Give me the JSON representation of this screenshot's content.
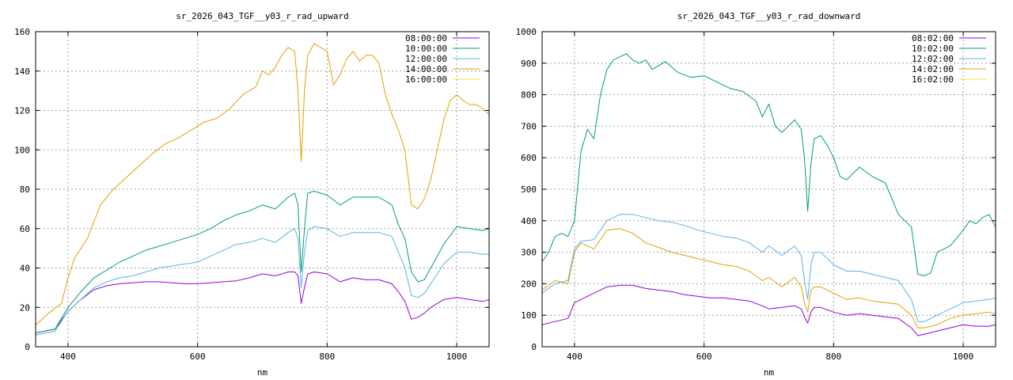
{
  "chart_data": [
    {
      "type": "line",
      "title": "sr_2026_043_TGF__y03_r_rad_upward",
      "xlabel": "nm",
      "ylabel": "",
      "xlim": [
        350,
        1050
      ],
      "ylim": [
        0,
        160
      ],
      "xticks": [
        400,
        600,
        800,
        1000
      ],
      "yticks": [
        0,
        20,
        40,
        60,
        80,
        100,
        120,
        140,
        160
      ],
      "grid": true,
      "legend": "top-right",
      "series": [
        {
          "name": "08:00:00",
          "color": "#9400d3",
          "x": [
            350,
            380,
            400,
            420,
            440,
            460,
            480,
            500,
            520,
            540,
            560,
            580,
            600,
            620,
            640,
            660,
            680,
            700,
            720,
            740,
            750,
            755,
            760,
            765,
            770,
            780,
            800,
            820,
            840,
            860,
            880,
            900,
            910,
            920,
            930,
            940,
            950,
            960,
            980,
            1000,
            1020,
            1040,
            1050
          ],
          "y": [
            7,
            9,
            18,
            24,
            29,
            31,
            32,
            32.5,
            33,
            33,
            32.5,
            32,
            32,
            32.5,
            33,
            33.5,
            35,
            37,
            36,
            38,
            38,
            36,
            22,
            30,
            37,
            38,
            37,
            33,
            35,
            34,
            34,
            32,
            28,
            23,
            14,
            15,
            17,
            20,
            24,
            25,
            24,
            23,
            24
          ]
        },
        {
          "name": "10:00:00",
          "color": "#009e73",
          "x": [
            350,
            380,
            400,
            420,
            440,
            460,
            480,
            500,
            520,
            540,
            560,
            580,
            600,
            620,
            640,
            660,
            680,
            700,
            720,
            740,
            750,
            755,
            760,
            765,
            770,
            780,
            800,
            820,
            840,
            860,
            880,
            900,
            910,
            920,
            930,
            940,
            950,
            960,
            980,
            1000,
            1020,
            1040,
            1050
          ],
          "y": [
            7,
            9,
            20,
            28,
            35,
            39,
            43,
            46,
            49,
            51,
            53,
            55,
            57,
            60,
            64,
            67,
            69,
            72,
            70,
            76,
            78,
            72,
            38,
            60,
            78,
            79,
            77,
            72,
            76,
            76,
            76,
            72,
            62,
            55,
            38,
            33,
            34,
            40,
            52,
            61,
            60,
            59,
            60
          ]
        },
        {
          "name": "12:00:00",
          "color": "#56b4e9",
          "x": [
            350,
            380,
            400,
            420,
            440,
            460,
            480,
            500,
            520,
            540,
            560,
            580,
            600,
            620,
            640,
            660,
            680,
            700,
            720,
            740,
            750,
            755,
            760,
            765,
            770,
            780,
            800,
            820,
            840,
            860,
            880,
            900,
            910,
            920,
            930,
            940,
            950,
            960,
            980,
            1000,
            1020,
            1040,
            1050
          ],
          "y": [
            6,
            8,
            18,
            24,
            30,
            33,
            35,
            36,
            38,
            40,
            41,
            42,
            43,
            46,
            49,
            52,
            53,
            55,
            53,
            58,
            60,
            55,
            30,
            48,
            59,
            61,
            60,
            56,
            58,
            58,
            58,
            56,
            48,
            40,
            26,
            25,
            27,
            32,
            42,
            48,
            48,
            47,
            47
          ]
        },
        {
          "name": "14:00:00",
          "color": "#e69f00",
          "x": [
            350,
            370,
            390,
            400,
            410,
            430,
            450,
            470,
            490,
            510,
            530,
            550,
            570,
            590,
            610,
            630,
            650,
            670,
            690,
            700,
            710,
            720,
            730,
            740,
            750,
            755,
            760,
            765,
            770,
            780,
            790,
            800,
            810,
            820,
            830,
            840,
            850,
            860,
            870,
            880,
            890,
            900,
            910,
            920,
            930,
            940,
            950,
            960,
            970,
            980,
            990,
            1000,
            1010,
            1020,
            1030,
            1040,
            1050
          ],
          "y": [
            11,
            17,
            22,
            35,
            45,
            55,
            72,
            80,
            86,
            92,
            98,
            103,
            106,
            110,
            114,
            116,
            121,
            128,
            132,
            140,
            138,
            142,
            148,
            152,
            150,
            130,
            94,
            130,
            148,
            154,
            152,
            150,
            133,
            138,
            146,
            150,
            145,
            148,
            148,
            144,
            128,
            118,
            110,
            100,
            72,
            70,
            75,
            85,
            100,
            115,
            125,
            128,
            125,
            123,
            123,
            121,
            118
          ]
        },
        {
          "name": "16:00:00",
          "color": "#f0e442",
          "x": [],
          "y": []
        }
      ]
    },
    {
      "type": "line",
      "title": "sr_2026_043_TGF__y03_r_rad_downward",
      "xlabel": "nm",
      "ylabel": "",
      "xlim": [
        350,
        1050
      ],
      "ylim": [
        0,
        1000
      ],
      "xticks": [
        400,
        600,
        800,
        1000
      ],
      "yticks": [
        0,
        100,
        200,
        300,
        400,
        500,
        600,
        700,
        800,
        900,
        1000
      ],
      "grid": true,
      "legend": "top-right",
      "series": [
        {
          "name": "08:02:00",
          "color": "#9400d3",
          "x": [
            350,
            370,
            390,
            400,
            410,
            430,
            450,
            470,
            490,
            510,
            530,
            550,
            570,
            590,
            610,
            630,
            650,
            670,
            690,
            700,
            720,
            740,
            750,
            755,
            760,
            765,
            770,
            780,
            800,
            820,
            840,
            860,
            880,
            900,
            920,
            930,
            940,
            960,
            980,
            1000,
            1020,
            1040,
            1050
          ],
          "y": [
            70,
            80,
            90,
            140,
            150,
            170,
            190,
            195,
            195,
            185,
            180,
            175,
            165,
            160,
            155,
            155,
            150,
            145,
            130,
            120,
            125,
            130,
            120,
            95,
            75,
            110,
            125,
            125,
            110,
            100,
            105,
            100,
            95,
            90,
            60,
            35,
            40,
            50,
            60,
            70,
            65,
            65,
            70
          ]
        },
        {
          "name": "10:02:00",
          "color": "#009e73",
          "x": [
            350,
            360,
            370,
            380,
            390,
            400,
            410,
            420,
            430,
            440,
            450,
            460,
            470,
            480,
            490,
            500,
            510,
            520,
            540,
            560,
            580,
            600,
            620,
            640,
            660,
            680,
            690,
            700,
            710,
            720,
            730,
            740,
            750,
            755,
            760,
            765,
            770,
            780,
            790,
            800,
            810,
            820,
            840,
            860,
            880,
            900,
            910,
            920,
            930,
            940,
            950,
            960,
            980,
            1000,
            1010,
            1020,
            1030,
            1040,
            1050
          ],
          "y": [
            270,
            300,
            350,
            360,
            350,
            400,
            620,
            690,
            660,
            800,
            880,
            910,
            920,
            930,
            910,
            900,
            910,
            880,
            905,
            870,
            855,
            860,
            840,
            820,
            810,
            780,
            730,
            770,
            700,
            680,
            700,
            720,
            690,
            600,
            430,
            580,
            660,
            670,
            640,
            600,
            540,
            530,
            570,
            540,
            520,
            420,
            400,
            380,
            230,
            225,
            235,
            300,
            320,
            370,
            400,
            390,
            410,
            420,
            380
          ]
        },
        {
          "name": "12:02:00",
          "color": "#56b4e9",
          "x": [
            350,
            370,
            390,
            400,
            410,
            430,
            450,
            470,
            490,
            510,
            530,
            550,
            570,
            590,
            610,
            630,
            650,
            670,
            690,
            700,
            720,
            740,
            750,
            755,
            760,
            765,
            770,
            780,
            800,
            820,
            840,
            860,
            880,
            900,
            920,
            930,
            940,
            960,
            980,
            1000,
            1020,
            1040,
            1050
          ],
          "y": [
            170,
            200,
            210,
            310,
            335,
            340,
            400,
            420,
            420,
            410,
            400,
            395,
            385,
            370,
            360,
            350,
            345,
            330,
            300,
            320,
            290,
            320,
            290,
            210,
            150,
            260,
            300,
            300,
            260,
            240,
            240,
            230,
            220,
            210,
            150,
            80,
            80,
            100,
            120,
            140,
            145,
            150,
            155
          ]
        },
        {
          "name": "14:02:00",
          "color": "#e69f00",
          "x": [
            350,
            370,
            390,
            400,
            410,
            430,
            450,
            470,
            490,
            510,
            530,
            550,
            570,
            590,
            610,
            630,
            650,
            670,
            690,
            700,
            720,
            740,
            750,
            755,
            760,
            765,
            770,
            780,
            800,
            820,
            840,
            860,
            880,
            900,
            920,
            930,
            940,
            960,
            980,
            1000,
            1020,
            1040,
            1050
          ],
          "y": [
            180,
            210,
            200,
            300,
            330,
            310,
            370,
            375,
            360,
            330,
            315,
            300,
            290,
            280,
            270,
            260,
            255,
            240,
            210,
            220,
            190,
            220,
            190,
            140,
            110,
            180,
            190,
            190,
            170,
            150,
            155,
            145,
            140,
            135,
            100,
            60,
            60,
            70,
            90,
            100,
            105,
            110,
            105
          ]
        },
        {
          "name": "16:02:00",
          "color": "#f0e442",
          "x": [],
          "y": []
        }
      ]
    }
  ]
}
